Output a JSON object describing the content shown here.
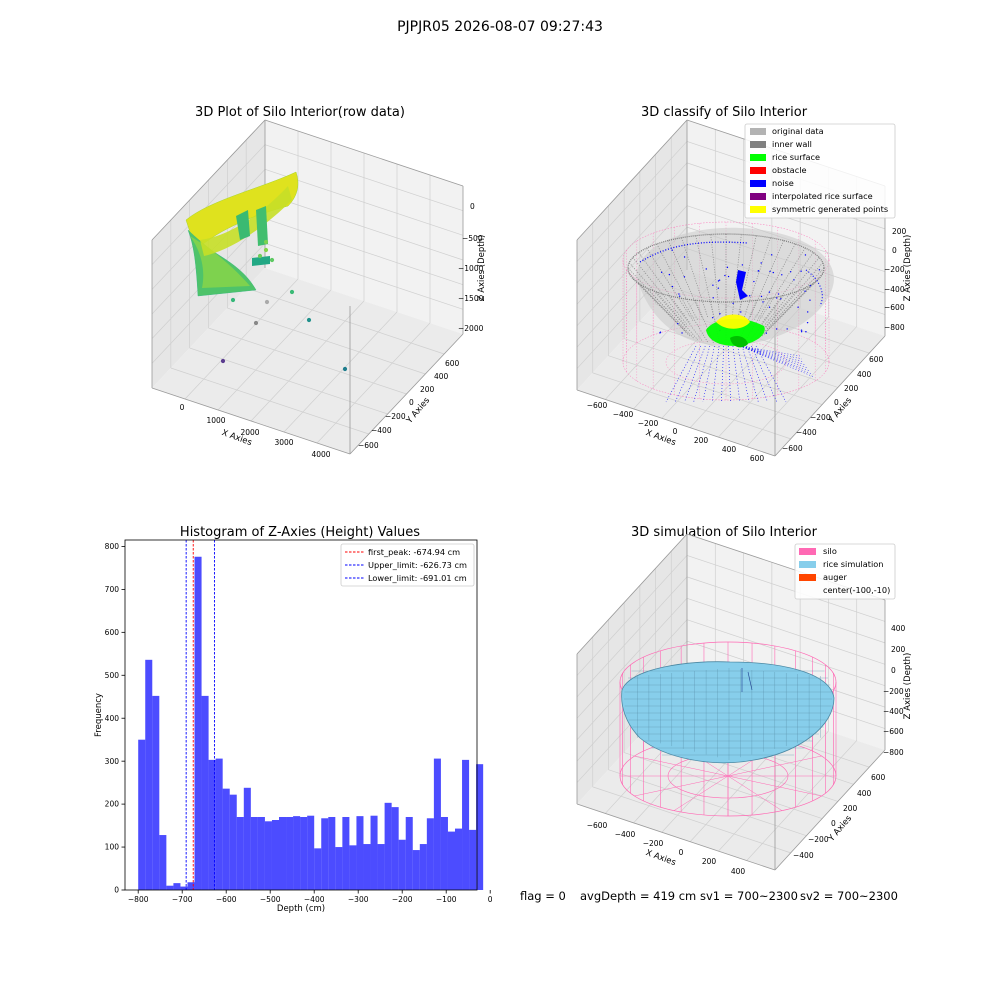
{
  "suptitle": "PJPJR05 2026-08-07 09:27:43",
  "footer": {
    "flag": "flag = 0",
    "avg_depth": "avgDepth = 419 cm",
    "sv1": "sv1 = 700~2300",
    "sv2": "sv2 = 700~2300"
  },
  "panels": {
    "raw": {
      "title": "3D Plot of Silo Interior(row data)",
      "xlabel": "X Axies",
      "ylabel": "Y Axies",
      "zlabel": "Z Axies (Depth)",
      "xticks": [
        "0",
        "1000",
        "2000",
        "3000",
        "4000"
      ],
      "yticks": [
        "600",
        "400",
        "200",
        "0",
        "−200",
        "−400",
        "−600"
      ],
      "zticks": [
        "0",
        "−500",
        "−1000",
        "−1500",
        "−2000"
      ]
    },
    "classify": {
      "title": "3D classify of Silo Interior",
      "xlabel": "X Axies",
      "ylabel": "Y Axies",
      "zlabel": "Z Axies (Depth)",
      "xticks": [
        "−600",
        "−400",
        "−200",
        "0",
        "200",
        "400",
        "600"
      ],
      "yticks": [
        "600",
        "400",
        "200",
        "0",
        "−200",
        "−400",
        "−600"
      ],
      "zticks": [
        "200",
        "0",
        "−200",
        "−400",
        "−600",
        "−800"
      ],
      "legend": [
        {
          "label": "original data",
          "color": "#b3b3b3"
        },
        {
          "label": "inner wall",
          "color": "#808080"
        },
        {
          "label": "rice surface",
          "color": "#00ff00"
        },
        {
          "label": "obstacle",
          "color": "#ff0000"
        },
        {
          "label": "noise",
          "color": "#0000ff"
        },
        {
          "label": "interpolated rice surface",
          "color": "#800080"
        },
        {
          "label": "symmetric generated points",
          "color": "#ffff00"
        }
      ]
    },
    "simulation": {
      "title": "3D simulation of Silo Interior",
      "xlabel": "X Axies",
      "ylabel": "Y Axies",
      "zlabel": "Z Axies (Depth)",
      "xticks": [
        "−600",
        "−400",
        "−200",
        "0",
        "200",
        "400"
      ],
      "yticks": [
        "600",
        "400",
        "200",
        "0",
        "−200",
        "−400"
      ],
      "zticks": [
        "400",
        "200",
        "0",
        "−200",
        "−400",
        "−600",
        "−800"
      ],
      "legend": [
        {
          "label": "silo",
          "color": "#ff69b4"
        },
        {
          "label": "rice simulation",
          "color": "#87ceeb"
        },
        {
          "label": "auger",
          "color": "#ff4500"
        },
        {
          "label": "center(-100,-10)",
          "color": ""
        }
      ]
    }
  },
  "chart_data": [
    {
      "type": "bar",
      "title": "Histogram of Z-Axies (Height) Values",
      "xlabel": "Depth (cm)",
      "ylabel": "Frequency",
      "xlim": [
        -830,
        -30
      ],
      "ylim": [
        0,
        815
      ],
      "grid": false,
      "bar_color": "#0000ff",
      "xticks": [
        -800,
        -700,
        -600,
        -500,
        -400,
        -300,
        -200,
        -100,
        0
      ],
      "xtick_labels": [
        "−800",
        "−700",
        "−600",
        "−500",
        "−400",
        "−300",
        "−200",
        "−100",
        "0"
      ],
      "yticks": [
        0,
        100,
        200,
        300,
        400,
        500,
        600,
        700,
        800
      ],
      "yticks_labels": [
        "0",
        "100",
        "200",
        "300",
        "400",
        "500",
        "600",
        "700",
        "800"
      ],
      "bins": {
        "start": -800,
        "width": 16,
        "values": [
          350,
          536,
          452,
          128,
          10,
          16,
          8,
          18,
          776,
          452,
          303,
          306,
          236,
          222,
          170,
          238,
          170,
          170,
          160,
          163,
          170,
          170,
          172,
          170,
          173,
          97,
          167,
          170,
          100,
          170,
          104,
          172,
          107,
          173,
          107,
          203,
          193,
          117,
          170,
          93,
          107,
          167,
          306,
          170,
          136,
          143,
          303,
          140,
          293
        ]
      },
      "vlines": [
        {
          "label": "first_peak: -674.94 cm",
          "x": -674.94,
          "color": "#ff0000"
        },
        {
          "label": "Upper_limit: -626.73 cm",
          "x": -626.73,
          "color": "#0000ff"
        },
        {
          "label": "Lower_limit: -691.01 cm",
          "x": -691.01,
          "color": "#0000ff"
        }
      ],
      "legend_position": "top-right"
    }
  ]
}
